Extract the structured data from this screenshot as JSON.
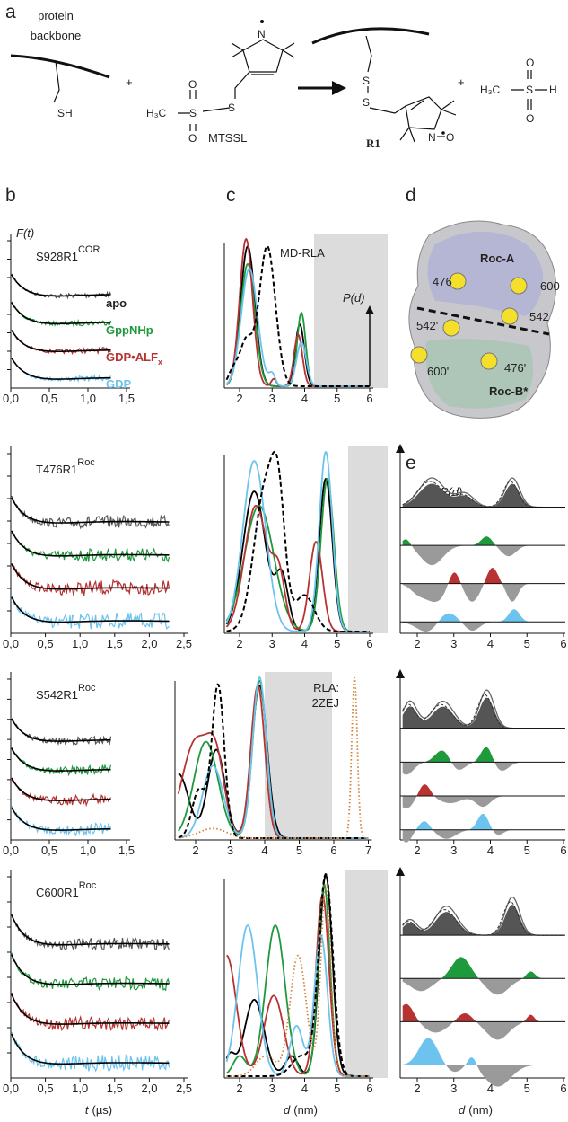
{
  "panel_a": {
    "label": "a",
    "protein": [
      "protein",
      "backbone"
    ],
    "sh": "SH",
    "plus": "+",
    "mtssl": "MTSSL",
    "r1": "R1",
    "h3c": "H₃C",
    "s": "S",
    "o": "O",
    "h": "H",
    "n": "N"
  },
  "panel_b": {
    "label": "b",
    "y_label": "F(t)",
    "legend": [
      {
        "text": "apo",
        "color": "#222222"
      },
      {
        "text": "GppNHp",
        "color": "#1e9a3c"
      },
      {
        "text": "GDP•ALF",
        "sub": "x",
        "color": "#b83232"
      },
      {
        "text": "GDP",
        "color": "#6cc4ee"
      }
    ],
    "rows": [
      {
        "name": "S928R1",
        "sup": "COR",
        "ticks": [
          "0,0",
          "0,5",
          "1,0",
          "1,5"
        ]
      },
      {
        "name": "T476R1",
        "sup": "Roc",
        "ticks": [
          "0,0",
          "0,5",
          "1,0",
          "1,5",
          "2,0",
          "2,5"
        ]
      },
      {
        "name": "S542R1",
        "sup": "Roc",
        "ticks": [
          "0,0",
          "0,5",
          "1,0",
          "1,5"
        ]
      },
      {
        "name": "C600R1",
        "sup": "Roc",
        "ticks": [
          "0,0",
          "0,5",
          "1,0",
          "1,5",
          "2,0",
          "2,5"
        ]
      }
    ],
    "x_label": {
      "var": "t",
      "unit": "(µs)"
    }
  },
  "panel_c": {
    "label": "c",
    "md": "MD-RLA",
    "y_label": "P(d)",
    "rla": [
      "RLA:",
      "2ZEJ"
    ],
    "rla_color": "#d2833a",
    "rows": [
      {
        "ticks": [
          2,
          3,
          4,
          5,
          6
        ]
      },
      {
        "ticks": [
          2,
          3,
          4,
          5,
          6
        ]
      },
      {
        "ticks": [
          2,
          3,
          4,
          5,
          6,
          7
        ]
      },
      {
        "ticks": [
          2,
          3,
          4,
          5,
          6
        ]
      }
    ],
    "x_label": {
      "var": "d",
      "unit": "(nm)"
    }
  },
  "panel_d": {
    "label": "d",
    "domain_a": "Roc-A",
    "domain_b": "Roc-B*",
    "sites": [
      "476",
      "600",
      "542",
      "542'",
      "600'",
      "476'"
    ]
  },
  "panel_e": {
    "label": "e",
    "y_label": "ΔP(d)",
    "rows": [
      {
        "ticks": [
          2,
          3,
          4,
          5,
          6
        ]
      },
      {
        "ticks": [
          2,
          3,
          4,
          5,
          6
        ]
      },
      {
        "ticks": [
          2,
          3,
          4,
          5,
          6
        ]
      }
    ],
    "x_label": {
      "var": "d",
      "unit": "(nm)"
    }
  }
}
